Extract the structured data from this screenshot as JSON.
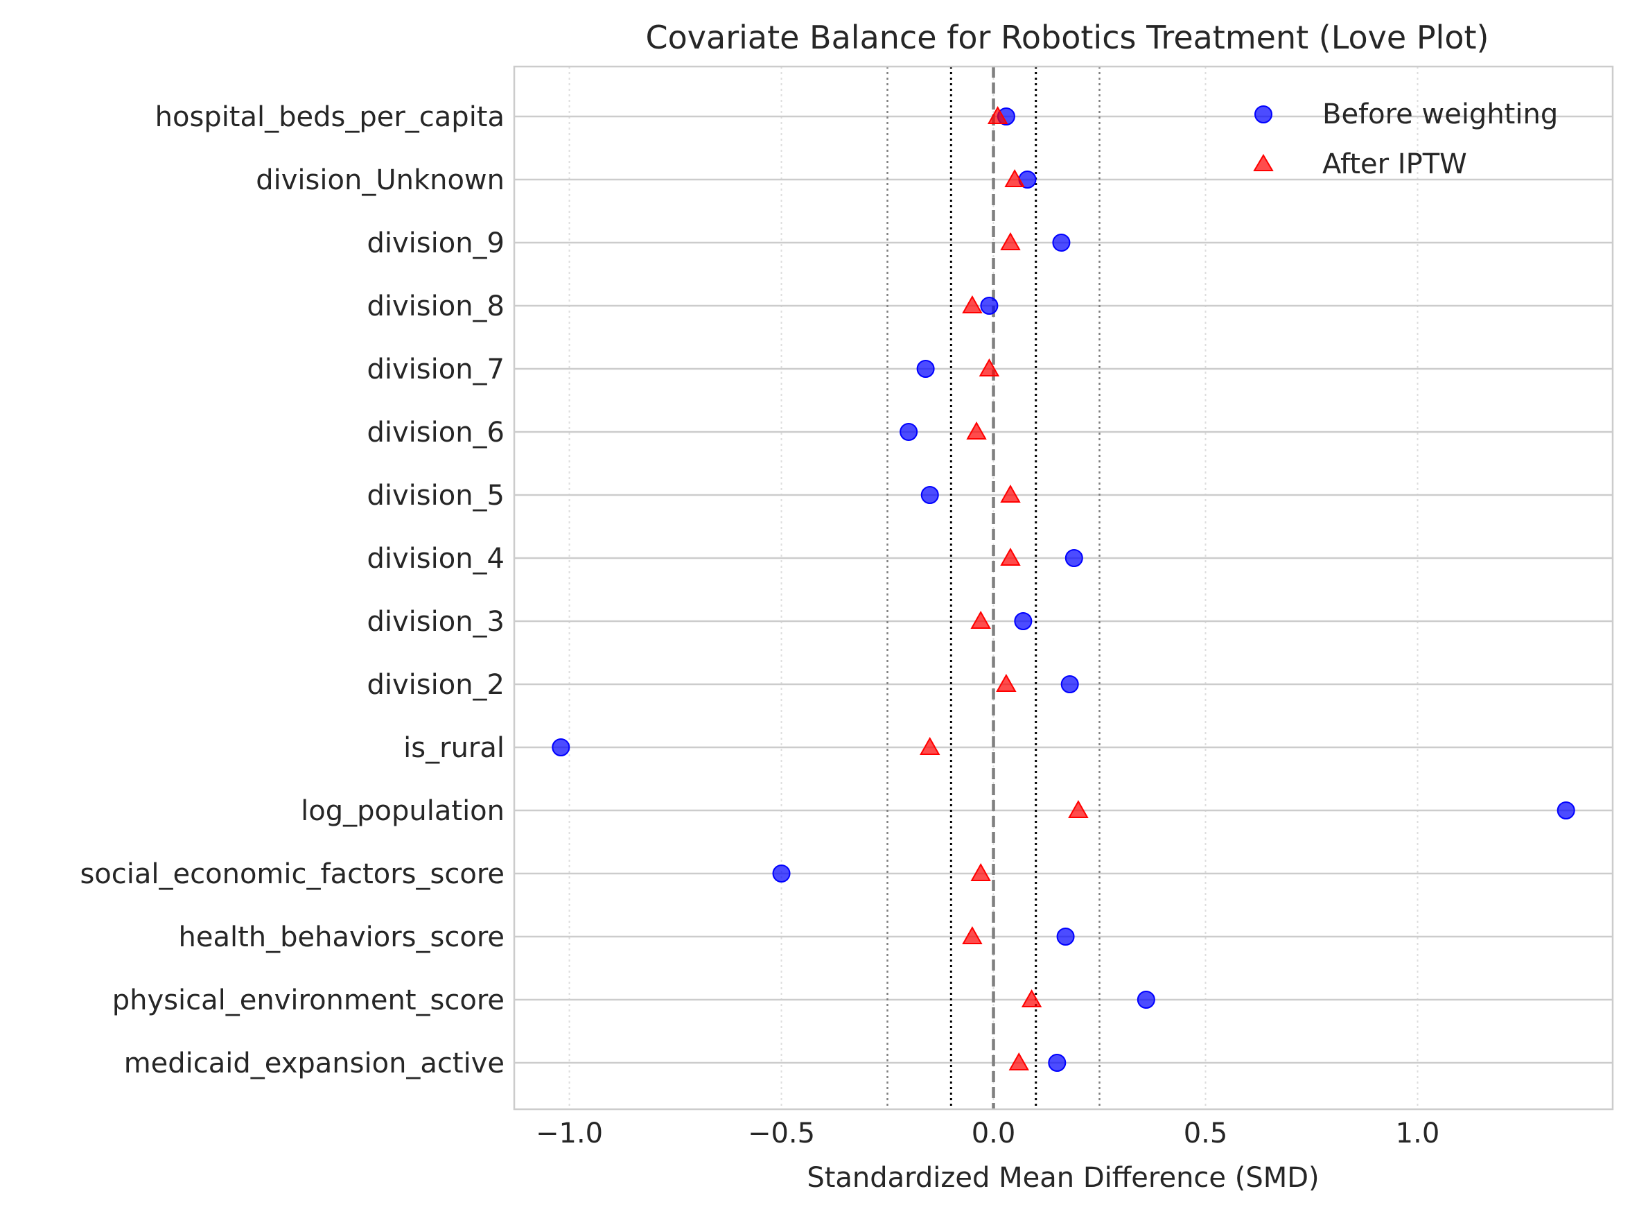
{
  "chart_data": {
    "type": "scatter",
    "title": "Covariate Balance for Robotics Treatment (Love Plot)",
    "xlabel": "Standardized Mean Difference (SMD)",
    "ylabel": "",
    "xlim": [
      -1.13,
      1.46
    ],
    "xticks": [
      -1.0,
      -0.5,
      0.0,
      0.5,
      1.0
    ],
    "xtick_labels": [
      "−1.0",
      "−0.5",
      "0.0",
      "0.5",
      "1.0"
    ],
    "grid": true,
    "legend_position": "top-right",
    "reference_lines": [
      {
        "x": 0.0,
        "style": "dashed"
      },
      {
        "x": -0.1,
        "style": "dotted"
      },
      {
        "x": 0.1,
        "style": "dotted"
      },
      {
        "x": -0.25,
        "style": "dotted-light"
      },
      {
        "x": 0.25,
        "style": "dotted-light"
      }
    ],
    "categories": [
      "hospital_beds_per_capita",
      "division_Unknown",
      "division_9",
      "division_8",
      "division_7",
      "division_6",
      "division_5",
      "division_4",
      "division_3",
      "division_2",
      "is_rural",
      "log_population",
      "social_economic_factors_score",
      "health_behaviors_score",
      "physical_environment_score",
      "medicaid_expansion_active"
    ],
    "series": [
      {
        "name": "Before weighting",
        "marker": "circle",
        "color": "#0000ff",
        "values": [
          0.03,
          0.08,
          0.16,
          -0.01,
          -0.16,
          -0.2,
          -0.15,
          0.19,
          0.07,
          0.18,
          -1.02,
          1.35,
          -0.5,
          0.17,
          0.36,
          0.15
        ]
      },
      {
        "name": "After IPTW",
        "marker": "triangle",
        "color": "#ff0000",
        "values": [
          0.01,
          0.05,
          0.04,
          -0.05,
          -0.01,
          -0.04,
          0.04,
          0.04,
          -0.03,
          0.03,
          -0.15,
          0.2,
          -0.03,
          -0.05,
          0.09,
          0.06
        ]
      }
    ]
  }
}
